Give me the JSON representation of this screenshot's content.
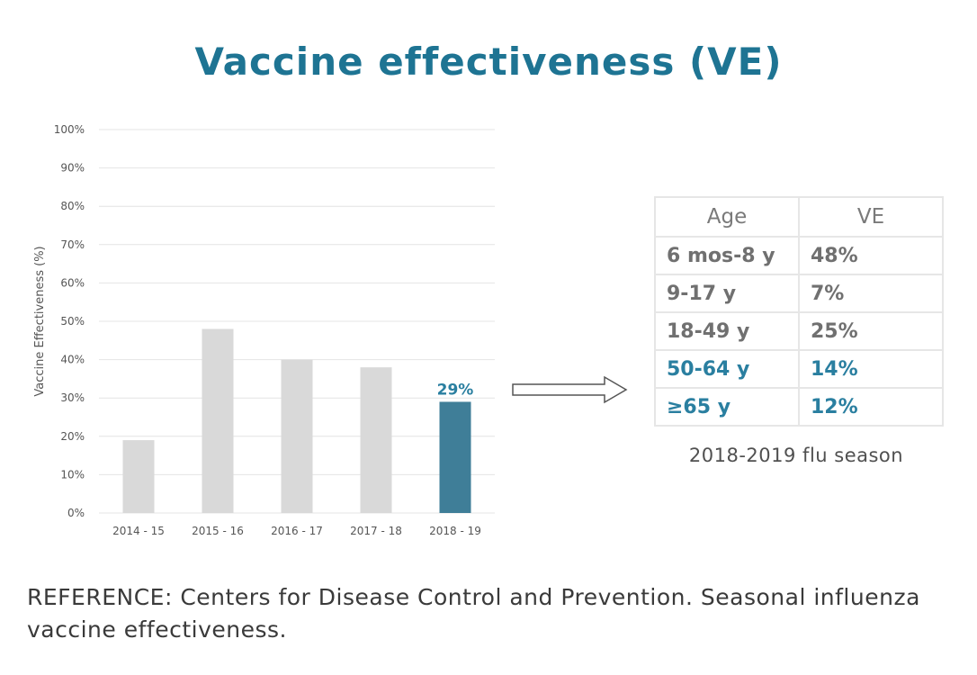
{
  "title": "Vaccine effectiveness (VE)",
  "chart_data": {
    "type": "bar",
    "ylabel": "Vaccine Effectiveness (%)",
    "xlabel": "",
    "categories": [
      "2014 - 15",
      "2015 - 16",
      "2016 - 17",
      "2017 - 18",
      "2018 - 19"
    ],
    "values": [
      19,
      48,
      40,
      38,
      29
    ],
    "ylim": [
      0,
      100
    ],
    "y_ticks": [
      "0%",
      "10%",
      "20%",
      "30%",
      "40%",
      "50%",
      "60%",
      "70%",
      "80%",
      "90%",
      "100%"
    ],
    "data_labels": [
      null,
      null,
      null,
      null,
      "29%"
    ],
    "grid": true,
    "colors": {
      "default_bar": "#d9d9d9",
      "highlight_bar": "#3f7e98",
      "grid": "#e4e4e4"
    },
    "highlight_index": 4
  },
  "table": {
    "headers": [
      "Age",
      "VE"
    ],
    "rows": [
      {
        "age": "6 mos-8 y",
        "ve": "48%",
        "highlight": false
      },
      {
        "age": "9-17 y",
        "ve": "7%",
        "highlight": false
      },
      {
        "age": "18-49 y",
        "ve": "25%",
        "highlight": false
      },
      {
        "age": "50-64 y",
        "ve": "14%",
        "highlight": true
      },
      {
        "age": "≥65 y",
        "ve": "12%",
        "highlight": true
      }
    ]
  },
  "season_caption": "2018-2019 flu season",
  "reference": "REFERENCE: Centers for Disease Control and Prevention. Seasonal influenza vaccine effectiveness."
}
